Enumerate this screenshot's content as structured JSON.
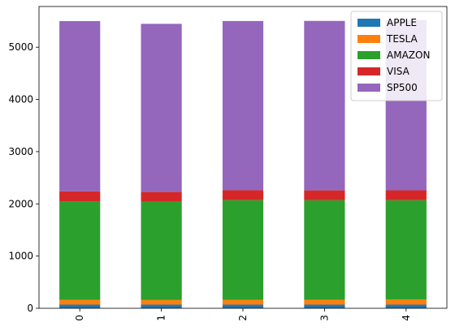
{
  "chart_data": {
    "type": "bar",
    "stacked": true,
    "categories": [
      "0",
      "1",
      "2",
      "3",
      "4"
    ],
    "series": [
      {
        "name": "APPLE",
        "color": "#1f77b4",
        "values": [
          70,
          70,
          70,
          70,
          70
        ]
      },
      {
        "name": "TESLA",
        "color": "#ff7f0e",
        "values": [
          90,
          88,
          92,
          94,
          100
        ]
      },
      {
        "name": "AMAZON",
        "color": "#2ca02c",
        "values": [
          1890,
          1880,
          1910,
          1905,
          1900
        ]
      },
      {
        "name": "VISA",
        "color": "#d62728",
        "values": [
          190,
          190,
          190,
          190,
          190
        ]
      },
      {
        "name": "SP500",
        "color": "#9467bd",
        "values": [
          3260,
          3220,
          3240,
          3245,
          3260
        ]
      }
    ],
    "yticks": [
      "0",
      "1000",
      "2000",
      "3000",
      "4000",
      "5000"
    ],
    "ylim": [
      0,
      5780
    ],
    "legend_position": "top-right",
    "grid": false
  }
}
